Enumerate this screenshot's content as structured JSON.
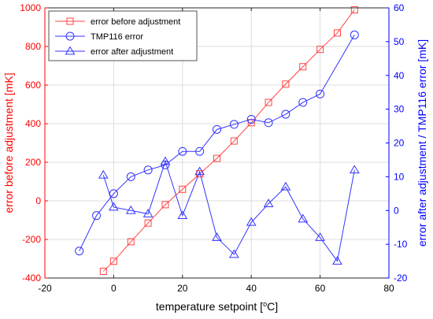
{
  "chart_data": {
    "type": "line",
    "xlabel": "temperature setpoint [°C]",
    "ylabel_left": "error before adjustment [mK]",
    "ylabel_right": "error after adjustment / TMP116 error [mK]",
    "xlim": [
      -20,
      80
    ],
    "ylim_left": [
      -400,
      1000
    ],
    "ylim_right": [
      -20,
      60
    ],
    "grid": true,
    "legend_position": "top-left",
    "colors": {
      "left_axis": "#ff0000",
      "right_axis": "#0000ff",
      "series_red": "#ff4444",
      "series_blue": "#3333ff"
    },
    "x_ticks": [
      -20,
      0,
      20,
      40,
      60,
      80
    ],
    "y_ticks_left": [
      -400,
      -200,
      0,
      200,
      400,
      600,
      800,
      1000
    ],
    "y_ticks_right": [
      -20,
      -10,
      0,
      10,
      20,
      30,
      40,
      50,
      60
    ],
    "series": [
      {
        "name": "error before adjustment",
        "axis": "left",
        "marker": "square",
        "color": "#ff4444",
        "x": [
          -3,
          0,
          5,
          10,
          15,
          20,
          25,
          30,
          35,
          40,
          45,
          50,
          55,
          60,
          65,
          70
        ],
        "y": [
          -365,
          -313,
          -212,
          -115,
          -20,
          60,
          140,
          220,
          310,
          405,
          510,
          605,
          695,
          785,
          870,
          990
        ]
      },
      {
        "name": "TMP116 error",
        "axis": "right",
        "marker": "circle",
        "color": "#3333ff",
        "x": [
          -10,
          -5,
          0,
          5,
          10,
          15,
          20,
          25,
          30,
          35,
          40,
          45,
          50,
          55,
          60,
          70
        ],
        "y": [
          -12,
          -1.5,
          5,
          10,
          12,
          13.5,
          17.5,
          17.5,
          24,
          25.5,
          27,
          26,
          28.5,
          32,
          34.5,
          52
        ]
      },
      {
        "name": "error after adjustment",
        "axis": "right",
        "marker": "triangle",
        "color": "#3333ff",
        "x": [
          -3,
          0,
          5,
          10,
          15,
          20,
          25,
          30,
          35,
          40,
          45,
          50,
          55,
          60,
          65,
          70
        ],
        "y": [
          10.5,
          1,
          0,
          -1,
          14.5,
          -1.5,
          11.5,
          -8,
          -13,
          -3.5,
          2,
          7,
          -2.5,
          -8,
          -15,
          12
        ]
      }
    ]
  }
}
